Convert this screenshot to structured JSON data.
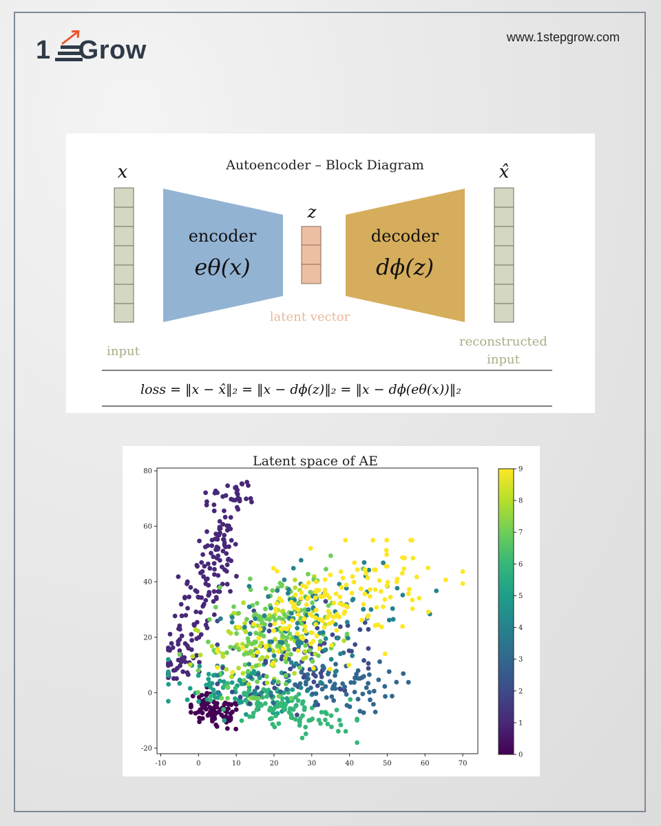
{
  "brand": {
    "logo_lead": "1",
    "logo_word": "Grow",
    "website": "www.1stepgrow.com"
  },
  "diagram": {
    "title": "Autoencoder – Block Diagram",
    "input_symbol": "x",
    "output_symbol": "x̂",
    "latent_symbol": "z",
    "encoder_label": "encoder",
    "encoder_fn": "eθ(x)",
    "decoder_label": "decoder",
    "decoder_fn": "dϕ(z)",
    "latent_caption": "latent vector",
    "input_caption": "input",
    "output_caption_line1": "reconstructed",
    "output_caption_line2": "input",
    "loss_formula": "loss = ‖x − x̂‖₂ = ‖x − dϕ(z)‖₂ = ‖x − dϕ(eθ(x))‖₂",
    "colors": {
      "encoder": "#93b3d3",
      "decoder": "#d6ad5c",
      "latent": "#ecbfa3",
      "vector": "#d4d8c2",
      "caption_green": "#a9ad83",
      "caption_latent": "#eab79c"
    }
  },
  "chart_data": {
    "type": "scatter",
    "title": "Latent space of AE",
    "xlabel": "",
    "ylabel": "",
    "xlim": [
      -11,
      74
    ],
    "ylim": [
      -22,
      81
    ],
    "x_ticks": [
      -10,
      0,
      10,
      20,
      30,
      40,
      50,
      60,
      70
    ],
    "y_ticks": [
      -20,
      0,
      20,
      40,
      60,
      80
    ],
    "colorbar": {
      "min": 0,
      "max": 9,
      "ticks": [
        0,
        1,
        2,
        3,
        4,
        5,
        6,
        7,
        8,
        9
      ],
      "colormap": "viridis"
    },
    "clusters": [
      {
        "class": 0,
        "color": "#440154",
        "center": [
          4,
          -7
        ],
        "spread": [
          4,
          3
        ],
        "count": 90,
        "approx_extent": {
          "x": [
            -2,
            10
          ],
          "y": [
            -17,
            2
          ]
        }
      },
      {
        "class": 1,
        "color": "#482878",
        "center": [
          3,
          35
        ],
        "spread": [
          5,
          15
        ],
        "count": 200,
        "approx_extent": {
          "x": [
            -8,
            15
          ],
          "y": [
            5,
            76
          ]
        }
      },
      {
        "class": 2,
        "color": "#3e4a89",
        "center": [
          28,
          15
        ],
        "spread": [
          10,
          10
        ],
        "count": 90,
        "approx_extent": {
          "x": [
            5,
            45
          ],
          "y": [
            -8,
            45
          ]
        }
      },
      {
        "class": 3,
        "color": "#31688e",
        "center": [
          32,
          3
        ],
        "spread": [
          10,
          5
        ],
        "count": 90,
        "approx_extent": {
          "x": [
            10,
            60
          ],
          "y": [
            -8,
            20
          ]
        }
      },
      {
        "class": 4,
        "color": "#26828e",
        "center": [
          30,
          25
        ],
        "spread": [
          12,
          10
        ],
        "count": 110,
        "approx_extent": {
          "x": [
            5,
            64
          ],
          "y": [
            0,
            54
          ]
        }
      },
      {
        "class": 5,
        "color": "#1f9e89",
        "center": [
          12,
          2
        ],
        "spread": [
          9,
          4
        ],
        "count": 90,
        "approx_extent": {
          "x": [
            -8,
            30
          ],
          "y": [
            -10,
            12
          ]
        }
      },
      {
        "class": 6,
        "color": "#35b779",
        "center": [
          22,
          -6
        ],
        "spread": [
          9,
          4
        ],
        "count": 110,
        "approx_extent": {
          "x": [
            0,
            42
          ],
          "y": [
            -18,
            6
          ]
        }
      },
      {
        "class": 7,
        "color": "#6ece58",
        "center": [
          20,
          22
        ],
        "spread": [
          9,
          10
        ],
        "count": 150,
        "approx_extent": {
          "x": [
            -5,
            50
          ],
          "y": [
            -2,
            55
          ]
        }
      },
      {
        "class": 8,
        "color": "#b5de2b",
        "center": [
          18,
          18
        ],
        "spread": [
          9,
          9
        ],
        "count": 90,
        "approx_extent": {
          "x": [
            -5,
            45
          ],
          "y": [
            -2,
            50
          ]
        }
      },
      {
        "class": 9,
        "color": "#fde725",
        "center": [
          35,
          30
        ],
        "spread": [
          13,
          9
        ],
        "count": 170,
        "approx_extent": {
          "x": [
            5,
            70
          ],
          "y": [
            2,
            55
          ]
        }
      }
    ]
  }
}
